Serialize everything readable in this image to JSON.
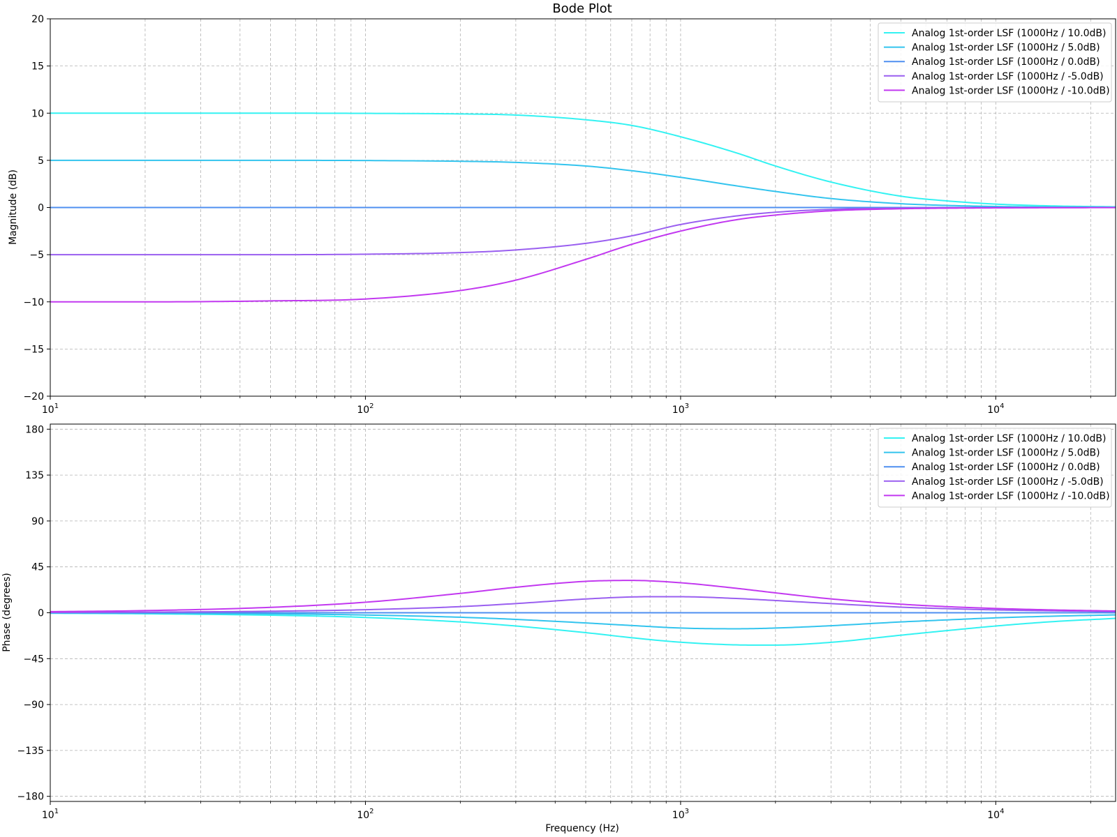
{
  "chart_data": [
    {
      "type": "line",
      "title": "Bode Plot",
      "xlabel": "",
      "ylabel": "Magnitude (dB)",
      "xscale": "log",
      "xlim": [
        10,
        24000
      ],
      "ylim": [
        -20,
        20
      ],
      "yticks": [
        20,
        15,
        10,
        5,
        0,
        -5,
        -10,
        -15,
        -20
      ],
      "ytick_labels": [
        "20",
        "15",
        "10",
        "5",
        "0",
        "−5",
        "−10",
        "−15",
        "−20"
      ],
      "xticks": [
        10,
        100,
        1000,
        10000
      ],
      "xtick_labels": [
        {
          "base": "10",
          "exp": "1"
        },
        {
          "base": "10",
          "exp": "2"
        },
        {
          "base": "10",
          "exp": "3"
        },
        {
          "base": "10",
          "exp": "4"
        }
      ],
      "grid": true,
      "legend_position": "top-right",
      "series": [
        {
          "name": "Analog 1st-order LSF (1000Hz / 10.0dB)",
          "color": "#33f2f2",
          "x": [
            10,
            20,
            50,
            100,
            200,
            300,
            500,
            700,
            1000,
            1500,
            2000,
            3000,
            5000,
            7000,
            10000,
            15000,
            24000
          ],
          "y": [
            10,
            10,
            10,
            9.98,
            9.92,
            9.8,
            9.3,
            8.7,
            7.5,
            5.8,
            4.4,
            2.7,
            1.2,
            0.7,
            0.36,
            0.17,
            0.07
          ]
        },
        {
          "name": "Analog 1st-order LSF (1000Hz / 5.0dB)",
          "color": "#33c4ee",
          "x": [
            10,
            20,
            50,
            100,
            200,
            300,
            500,
            700,
            1000,
            1500,
            2000,
            3000,
            5000,
            7000,
            10000,
            15000,
            24000
          ],
          "y": [
            5,
            5,
            5,
            4.98,
            4.9,
            4.78,
            4.4,
            3.9,
            3.2,
            2.3,
            1.7,
            0.95,
            0.4,
            0.22,
            0.11,
            0.05,
            0.02
          ]
        },
        {
          "name": "Analog 1st-order LSF (1000Hz / 0.0dB)",
          "color": "#4f8ff0",
          "x": [
            10,
            100,
            1000,
            10000,
            24000
          ],
          "y": [
            0,
            0,
            0,
            0,
            0
          ]
        },
        {
          "name": "Analog 1st-order LSF (1000Hz / -5.0dB)",
          "color": "#9a5ff0",
          "x": [
            10,
            20,
            50,
            100,
            200,
            300,
            500,
            700,
            1000,
            1500,
            2000,
            3000,
            5000,
            7000,
            10000,
            15000,
            24000
          ],
          "y": [
            -5,
            -5,
            -5,
            -4.95,
            -4.78,
            -4.5,
            -3.8,
            -3.0,
            -1.8,
            -0.9,
            -0.5,
            -0.2,
            -0.07,
            -0.04,
            -0.02,
            -0.01,
            0
          ]
        },
        {
          "name": "Analog 1st-order LSF (1000Hz / -10.0dB)",
          "color": "#c238f0",
          "x": [
            10,
            20,
            50,
            100,
            200,
            300,
            500,
            700,
            1000,
            1500,
            2000,
            3000,
            5000,
            7000,
            10000,
            15000,
            24000
          ],
          "y": [
            -10,
            -10,
            -9.9,
            -9.7,
            -8.8,
            -7.7,
            -5.5,
            -3.9,
            -2.5,
            -1.3,
            -0.8,
            -0.35,
            -0.13,
            -0.07,
            -0.04,
            -0.02,
            -0.01
          ]
        }
      ]
    },
    {
      "type": "line",
      "title": "",
      "xlabel": "Frequency (Hz)",
      "ylabel": "Phase (degrees)",
      "xscale": "log",
      "xlim": [
        10,
        24000
      ],
      "ylim": [
        -185,
        185
      ],
      "yticks": [
        180,
        135,
        90,
        45,
        0,
        -45,
        -90,
        -135,
        -180
      ],
      "ytick_labels": [
        "180",
        "135",
        "90",
        "45",
        "0",
        "−45",
        "−90",
        "−135",
        "−180"
      ],
      "xticks": [
        10,
        100,
        1000,
        10000
      ],
      "xtick_labels": [
        {
          "base": "10",
          "exp": "1"
        },
        {
          "base": "10",
          "exp": "2"
        },
        {
          "base": "10",
          "exp": "3"
        },
        {
          "base": "10",
          "exp": "4"
        }
      ],
      "grid": true,
      "legend_position": "top-right",
      "series": [
        {
          "name": "Analog 1st-order LSF (1000Hz / 10.0dB)",
          "color": "#33f2f2",
          "x": [
            10,
            20,
            50,
            100,
            200,
            300,
            500,
            700,
            1000,
            1500,
            2000,
            3000,
            5000,
            7000,
            10000,
            15000,
            24000
          ],
          "y": [
            -0.5,
            -1,
            -2.4,
            -4.6,
            -9,
            -13,
            -19.5,
            -24.5,
            -28.9,
            -31.5,
            -31.7,
            -29,
            -22,
            -17.5,
            -13,
            -8.8,
            -5.5
          ]
        },
        {
          "name": "Analog 1st-order LSF (1000Hz / 5.0dB)",
          "color": "#33c4ee",
          "x": [
            10,
            20,
            50,
            100,
            200,
            300,
            500,
            700,
            1000,
            1500,
            2000,
            3000,
            5000,
            7000,
            10000,
            15000,
            24000
          ],
          "y": [
            -0.2,
            -0.5,
            -1.1,
            -2.2,
            -4.4,
            -6.5,
            -10,
            -12.5,
            -15,
            -15.7,
            -15,
            -12.7,
            -9,
            -7,
            -5,
            -3.4,
            -2.1
          ]
        },
        {
          "name": "Analog 1st-order LSF (1000Hz / 0.0dB)",
          "color": "#4f8ff0",
          "x": [
            10,
            100,
            1000,
            10000,
            24000
          ],
          "y": [
            0,
            0,
            0,
            0,
            0
          ]
        },
        {
          "name": "Analog 1st-order LSF (1000Hz / -5.0dB)",
          "color": "#9a5ff0",
          "x": [
            10,
            20,
            50,
            100,
            200,
            300,
            500,
            700,
            1000,
            1500,
            2000,
            3000,
            5000,
            7000,
            10000,
            15000,
            24000
          ],
          "y": [
            0.3,
            0.6,
            1.5,
            3,
            6,
            9,
            13.5,
            15.5,
            15.7,
            14,
            12,
            9,
            5.5,
            4,
            2.8,
            1.9,
            1.2
          ]
        },
        {
          "name": "Analog 1st-order LSF (1000Hz / -10.0dB)",
          "color": "#c238f0",
          "x": [
            10,
            20,
            50,
            100,
            200,
            300,
            500,
            700,
            1000,
            1500,
            2000,
            3000,
            5000,
            7000,
            10000,
            15000,
            24000
          ],
          "y": [
            1.1,
            2.1,
            5.3,
            10.3,
            19,
            25,
            30.8,
            31.7,
            29.4,
            24,
            19.5,
            13.6,
            8.4,
            6,
            4.2,
            2.8,
            1.7
          ]
        }
      ]
    }
  ]
}
